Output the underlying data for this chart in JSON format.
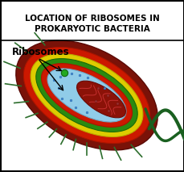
{
  "title_line1": "LOCATION OF RIBOSOMES IN",
  "title_line2": "PROKARYOTIC BACTERIA",
  "title_fontsize": 7.5,
  "label_text": "Ribosomes",
  "label_fontsize": 8.5,
  "bg_color": "#ffffff",
  "border_color": "#000000",
  "layer_brown": "#7a1a0a",
  "layer_red": "#cc1a00",
  "layer_yellow": "#ddcc00",
  "layer_green": "#2a8a10",
  "layer_red2": "#cc1a00",
  "layer_blue": "#88ccee",
  "nucleoid_color": "#8B1A1A",
  "flagella_color": "#1a6020",
  "pili_color": "#2d6e2d"
}
